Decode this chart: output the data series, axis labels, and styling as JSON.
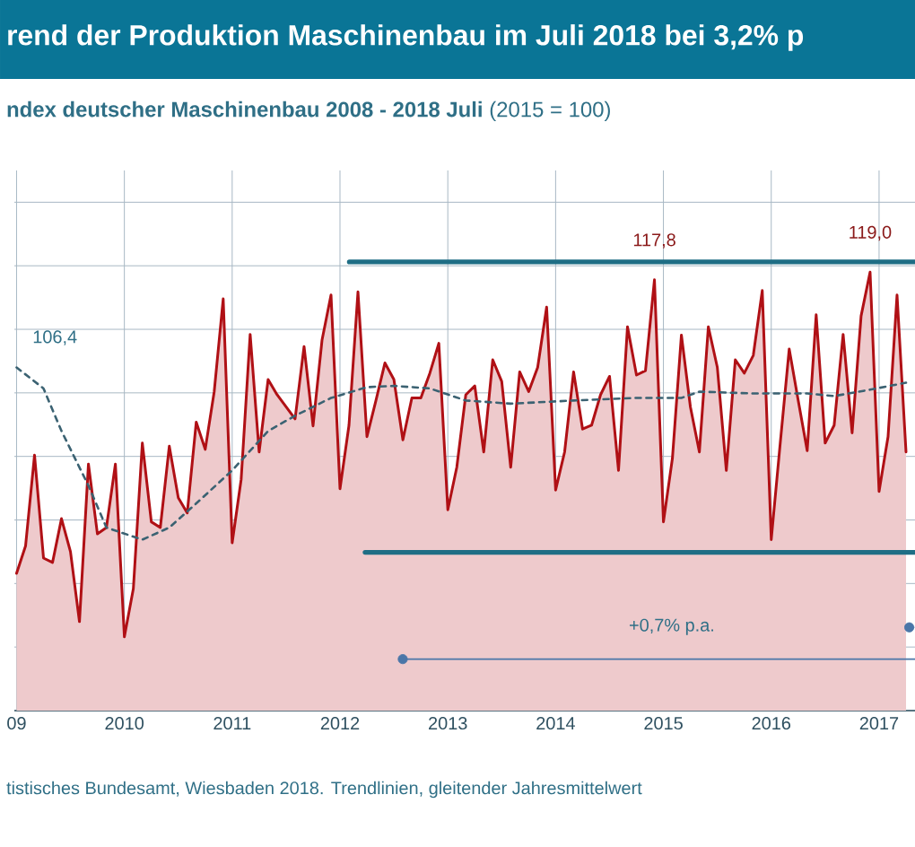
{
  "chart_data": {
    "type": "area",
    "title": "rend der Produktion Maschinenbau im Juli 2018 bei 3,2% p",
    "subtitle": "**ndex deutscher Maschinenbau 2008 - 2018 Juli** (2015 = 100)",
    "annotations": [
      "106,4",
      "+0,7% p.a.",
      "tistisches Bundesamt, Wiesbaden 2018. Trendlinien, gleitender Jahresmittelwert"
    ],
    "xlim": [
      "2008-12-24",
      "2017-05-01"
    ],
    "xticks": [
      {
        "value": "2009",
        "label": "09"
      },
      "2010",
      "2011",
      "2012",
      "2013",
      "2014",
      "2015",
      "2016",
      "2017"
    ],
    "ylim": [
      50,
      135
    ],
    "yticks": [
      {
        "value": 50,
        "label": null
      },
      {
        "value": 60,
        "label": null
      },
      {
        "value": 70,
        "label": null
      },
      {
        "value": 80,
        "label": null
      },
      {
        "value": 90,
        "label": null
      },
      {
        "value": 100,
        "label": null
      },
      {
        "value": 110,
        "label": null
      },
      {
        "value": 120,
        "label": null
      },
      {
        "value": 130,
        "label": null
      }
    ],
    "tick_labels": "x",
    "grid": true,
    "series": [
      {
        "color": "#b01015",
        "x": [
          "2009-01",
          "2009-02",
          "2009-03",
          "2009-04",
          "2009-05",
          "2009-06",
          "2009-07",
          "2009-08",
          "2009-09",
          "2009-10",
          "2009-11",
          "2009-12",
          "2010-01",
          "2010-02",
          "2010-03",
          "2010-04",
          "2010-05",
          "2010-06",
          "2010-07",
          "2010-08",
          "2010-09",
          "2010-10",
          "2010-11",
          "2010-12",
          "2011-01",
          "2011-02",
          "2011-03",
          "2011-04",
          "2011-05",
          "2011-06",
          "2011-07",
          "2011-08",
          "2011-09",
          "2011-10",
          "2011-11",
          "2011-12",
          "2012-01",
          "2012-02",
          "2012-03",
          "2012-04",
          "2012-05",
          "2012-06",
          "2012-07",
          "2012-08",
          "2012-09",
          "2012-10",
          "2012-11",
          "2012-12",
          "2013-01",
          "2013-02",
          "2013-03",
          "2013-04",
          "2013-05",
          "2013-06",
          "2013-07",
          "2013-08",
          "2013-09",
          "2013-10",
          "2013-11",
          "2013-12",
          "2014-01",
          "2014-02",
          "2014-03",
          "2014-04",
          "2014-05",
          "2014-06",
          "2014-07",
          "2014-08",
          "2014-09",
          "2014-10",
          "2014-11",
          "2014-12",
          "2015-01",
          "2015-02",
          "2015-03",
          "2015-04",
          "2015-05",
          "2015-06",
          "2015-07",
          "2015-08",
          "2015-09",
          "2015-10",
          "2015-11",
          "2015-12",
          "2016-01",
          "2016-02",
          "2016-03",
          "2016-04",
          "2016-05",
          "2016-06",
          "2016-07",
          "2016-08",
          "2016-09",
          "2016-10",
          "2016-11",
          "2016-12",
          "2017-01",
          "2017-02",
          "2017-03",
          "2017-04"
        ],
        "values": [
          71.6,
          75.9,
          90.2,
          74.0,
          73.3,
          80.2,
          75.0,
          64.0,
          88.8,
          77.8,
          78.8,
          88.8,
          61.6,
          69.2,
          92.1,
          79.7,
          78.8,
          91.6,
          83.5,
          81.1,
          95.4,
          91.1,
          100.2,
          114.8,
          76.4,
          86.4,
          109.2,
          90.7,
          102.1,
          99.7,
          97.8,
          95.9,
          107.3,
          94.8,
          108.3,
          115.4,
          84.9,
          94.9,
          115.9,
          93.1,
          98.8,
          104.7,
          102.1,
          92.6,
          99.2,
          99.2,
          103.1,
          107.8,
          81.6,
          88.3,
          99.7,
          101.1,
          90.7,
          105.2,
          101.8,
          88.3,
          103.3,
          100.2,
          104.0,
          113.5,
          84.7,
          90.7,
          103.3,
          94.3,
          94.9,
          99.7,
          102.6,
          87.8,
          110.4,
          102.8,
          103.5,
          117.8,
          79.7,
          89.7,
          109.1,
          97.8,
          90.7,
          110.4,
          104.0,
          87.8,
          105.2,
          103.1,
          105.9,
          116.1,
          76.9,
          92.1,
          106.9,
          98.8,
          90.9,
          112.3,
          92.1,
          94.9,
          109.2,
          93.7,
          112.1,
          119.0,
          84.5,
          93.1,
          115.4,
          90.7
        ],
        "value_labels": [
          null,
          null,
          null,
          null,
          null,
          null,
          null,
          null,
          null,
          null,
          null,
          null,
          null,
          null,
          null,
          null,
          null,
          null,
          null,
          null,
          null,
          null,
          null,
          null,
          null,
          null,
          null,
          null,
          null,
          null,
          null,
          null,
          null,
          null,
          null,
          null,
          null,
          null,
          null,
          null,
          null,
          null,
          null,
          null,
          null,
          null,
          null,
          null,
          null,
          null,
          null,
          null,
          null,
          null,
          null,
          null,
          null,
          null,
          null,
          null,
          null,
          null,
          null,
          null,
          null,
          null,
          null,
          null,
          null,
          null,
          null,
          "117,8",
          null,
          null,
          null,
          null,
          null,
          null,
          null,
          null,
          null,
          null,
          null,
          null,
          null,
          null,
          null,
          null,
          null,
          null,
          null,
          null,
          null,
          null,
          null,
          "119,0",
          null,
          null,
          null,
          null
        ]
      },
      {
        "type": "line",
        "color": "#3b6272",
        "line_style": "dashed",
        "x": [
          "2009-01",
          "2009-04",
          "2009-06",
          "2009-09",
          "2009-11",
          "2010-03",
          "2010-06",
          "2010-09",
          "2011-01",
          "2011-05",
          "2011-08",
          "2011-12",
          "2012-04",
          "2012-07",
          "2012-11",
          "2013-03",
          "2013-08",
          "2014-03",
          "2014-10",
          "2015-03",
          "2015-05",
          "2015-11",
          "2016-05",
          "2016-08",
          "2016-12",
          "2017-04"
        ],
        "values": [
          104.0,
          100.7,
          94.0,
          85.4,
          78.8,
          76.9,
          78.8,
          82.6,
          87.8,
          94.0,
          96.4,
          99.2,
          100.9,
          101.1,
          100.7,
          98.8,
          98.3,
          98.8,
          99.2,
          99.2,
          100.2,
          99.9,
          99.9,
          99.5,
          100.5,
          101.6
        ]
      },
      {
        "type": "line",
        "color": "#1f6e85",
        "x": [
          "2012-02-02",
          "2017-05-01"
        ],
        "values": [
          120.6,
          120.6
        ]
      },
      {
        "type": "line",
        "color": "#1f6e85",
        "x": [
          "2012-03-25",
          "2017-05-01"
        ],
        "values": [
          74.9,
          74.9
        ]
      },
      {
        "type": "line",
        "color": "#4a76a8",
        "x": [
          "2012-07-31",
          "2017-05-01"
        ],
        "values": [
          58.1,
          58.1
        ]
      },
      {
        "type": "scatter",
        "color": "#4a76a8",
        "marker": "circle",
        "x": [
          "2012-07-31",
          "2017-04-12"
        ],
        "values": [
          58.1,
          63.1
        ]
      }
    ]
  }
}
